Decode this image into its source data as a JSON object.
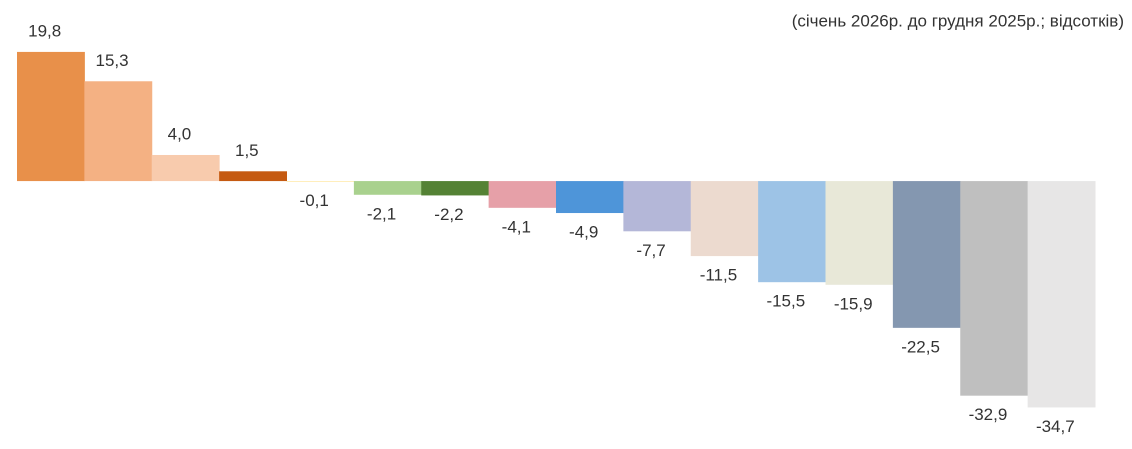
{
  "chart_data": {
    "type": "bar",
    "subtitle": "(січень 2026р. до грудня 2025р.; відсотків)",
    "categories": [
      null,
      null,
      null,
      null,
      null,
      null,
      null,
      null,
      null,
      null,
      null,
      null,
      null,
      null,
      null,
      null
    ],
    "values": [
      19.8,
      15.3,
      4.0,
      1.5,
      -0.1,
      -2.1,
      -2.2,
      -4.1,
      -4.9,
      -7.7,
      -11.5,
      -15.5,
      -15.9,
      -22.5,
      -32.9,
      -34.7
    ],
    "value_labels": [
      "19,8",
      "15,3",
      "4,0",
      "1,5",
      "-0,1",
      "-2,1",
      "-2,2",
      "-4,1",
      "-4,9",
      "-7,7",
      "-11,5",
      "-15,5",
      "-15,9",
      "-22,5",
      "-32,9",
      "-34,7"
    ],
    "colors": [
      "#e8904a",
      "#f4b183",
      "#f8cbad",
      "#c55a11",
      "#ffe699",
      "#a9d18e",
      "#548235",
      "#e6a0a8",
      "#4e95d9",
      "#b4b7d8",
      "#ecdacf",
      "#9dc3e6",
      "#e8e8d8",
      "#8497b0",
      "#bfbfbf",
      "#e7e6e6"
    ],
    "ylim": [
      -40,
      25
    ]
  }
}
